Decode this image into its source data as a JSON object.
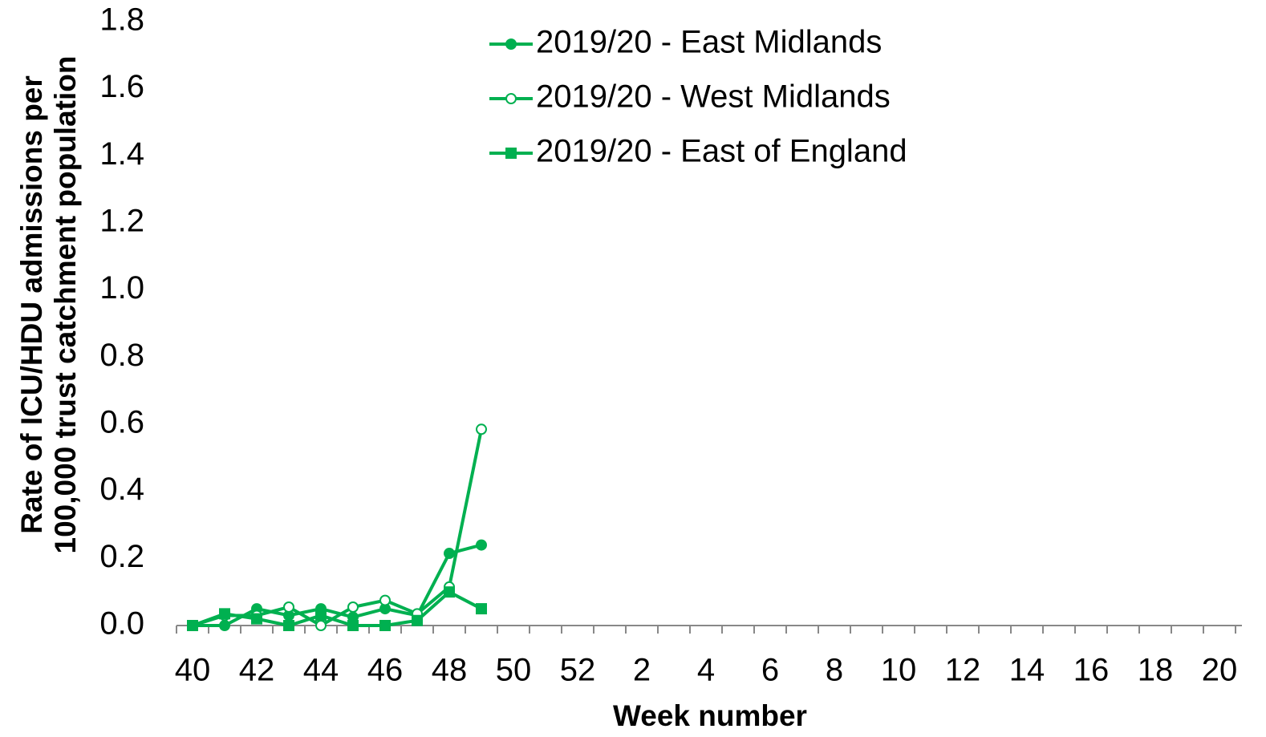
{
  "chart_data": {
    "type": "line",
    "x_label": "Week number",
    "y_label": [
      "Rate of ICU/HDU admissions per",
      "100,000 trust catchment population"
    ],
    "categories": [
      "40",
      null,
      "42",
      null,
      "44",
      null,
      "46",
      null,
      "48",
      null,
      "50",
      null,
      "52",
      null,
      "2",
      null,
      "4",
      null,
      "6",
      null,
      "8",
      null,
      "10",
      null,
      "12",
      null,
      "14",
      null,
      "16",
      null,
      "18",
      null,
      "20"
    ],
    "ylim": [
      0,
      1.8
    ],
    "yticks": [
      {
        "value": 0,
        "label": "0.0"
      },
      0.2,
      0.4,
      0.6,
      0.8,
      {
        "value": 1,
        "label": "1.0"
      },
      1.2,
      1.4,
      1.6,
      1.8
    ],
    "grid": false,
    "legend": "top",
    "series": [
      {
        "name": "2019/20 - East Midlands",
        "color": "#00b050",
        "marker": "circle",
        "values": [
          0,
          0,
          0.05,
          0.03,
          0.05,
          0.025,
          0.05,
          0.03,
          0.215,
          0.24,
          null,
          null,
          null,
          null,
          null,
          null,
          null,
          null,
          null,
          null,
          null,
          null,
          null,
          null,
          null,
          null,
          null,
          null,
          null,
          null,
          null,
          null,
          null
        ]
      },
      {
        "name": "2019/20 - West Midlands",
        "color": "#00b050",
        "marker": "circle-open",
        "values": [
          0,
          0.03,
          0.03,
          0.055,
          0,
          0.055,
          0.075,
          0.035,
          0.115,
          0.585,
          null,
          null,
          null,
          null,
          null,
          null,
          null,
          null,
          null,
          null,
          null,
          null,
          null,
          null,
          null,
          null,
          null,
          null,
          null,
          null,
          null,
          null,
          null
        ]
      },
      {
        "name": "2019/20 - East of England",
        "color": "#00b050",
        "marker": "square",
        "values": [
          0,
          0.035,
          0.02,
          0,
          0.03,
          0,
          0,
          0.015,
          0.1,
          0.05,
          null,
          null,
          null,
          null,
          null,
          null,
          null,
          null,
          null,
          null,
          null,
          null,
          null,
          null,
          null,
          null,
          null,
          null,
          null,
          null,
          null,
          null,
          null
        ]
      }
    ]
  }
}
